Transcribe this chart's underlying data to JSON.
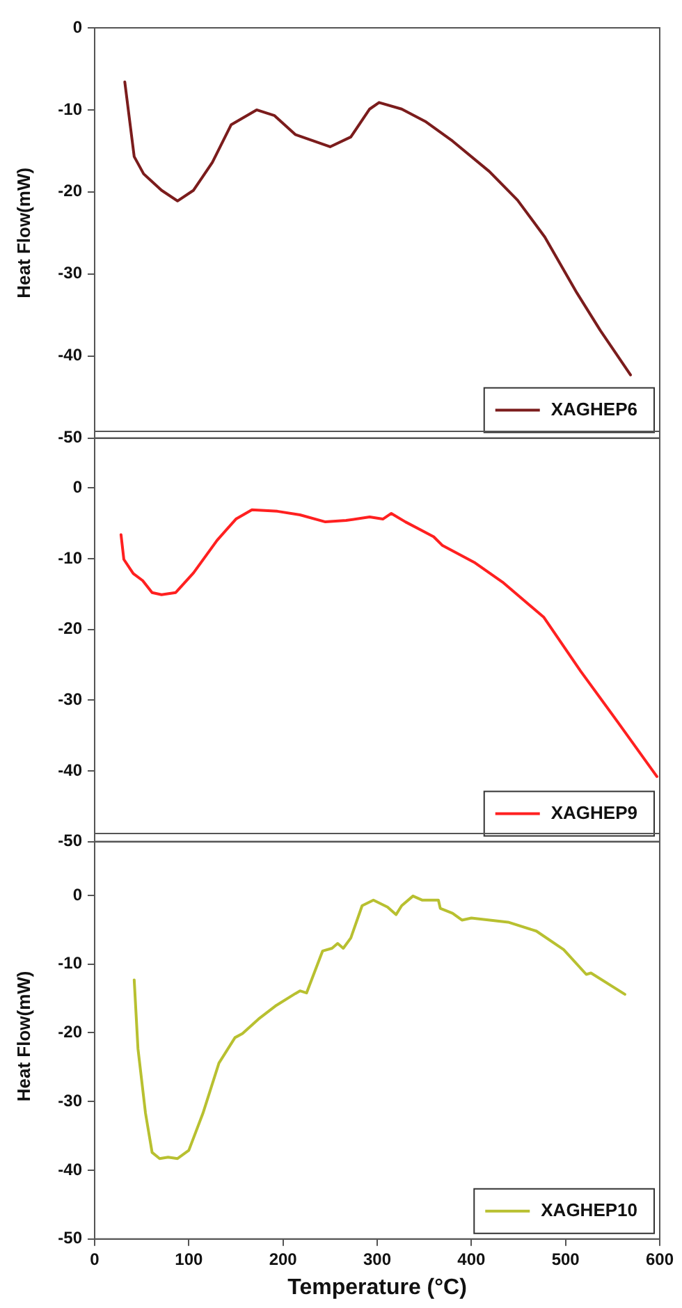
{
  "chart_data": [
    {
      "type": "line",
      "ylabel": "Heat Flow(mW)",
      "xlim": [
        0,
        600
      ],
      "ylim": [
        -50,
        0
      ],
      "yticks": [
        -50,
        -40,
        -30,
        -20,
        -10,
        0
      ],
      "tick_labels": "y",
      "legend": "bottom right",
      "grid": false,
      "marker": "none",
      "line_style": "solid",
      "series": [
        {
          "name": "XAGHEP6",
          "color": "#7b1c1c",
          "x": [
            32,
            42,
            52,
            71,
            88,
            105,
            125,
            145,
            172,
            191,
            213,
            250,
            272,
            292,
            302,
            326,
            351,
            380,
            419,
            449,
            478,
            512,
            537,
            569
          ],
          "values": [
            -6.6,
            -15.7,
            -17.8,
            -19.8,
            -21.1,
            -19.8,
            -16.4,
            -11.8,
            -10,
            -10.7,
            -13,
            -14.5,
            -13.3,
            -9.9,
            -9.1,
            -9.9,
            -11.4,
            -13.8,
            -17.5,
            -21,
            -25.5,
            -32.3,
            -36.9,
            -42.3
          ]
        }
      ]
    },
    {
      "type": "line",
      "xlim": [
        0,
        600
      ],
      "ylim": [
        -50,
        8
      ],
      "yticks": [
        -50,
        -40,
        -30,
        -20,
        -10,
        0
      ],
      "tick_labels": "y",
      "legend": "bottom right",
      "grid": false,
      "marker": "none",
      "line_style": "solid",
      "series": [
        {
          "name": "XAGHEP9",
          "color": "#ff2020",
          "x": [
            28,
            31,
            41,
            51,
            61,
            71,
            86,
            105,
            130,
            150,
            167,
            194,
            218,
            245,
            267,
            292,
            306,
            315,
            330,
            360,
            369,
            404,
            433,
            477,
            516,
            556,
            597
          ],
          "values": [
            -6.6,
            -10.1,
            -12.1,
            -13.1,
            -14.8,
            -15.1,
            -14.8,
            -12,
            -7.4,
            -4.4,
            -3.1,
            -3.3,
            -3.8,
            -4.8,
            -4.6,
            -4.1,
            -4.4,
            -3.6,
            -4.8,
            -6.9,
            -8.1,
            -10.6,
            -13.3,
            -18.3,
            -25.9,
            -33.2,
            -40.8
          ]
        }
      ]
    },
    {
      "type": "line",
      "xlabel": "Temperature (°C)",
      "ylabel": "Heat Flow(mW)",
      "xlim": [
        0,
        600
      ],
      "xticks": [
        0,
        100,
        200,
        300,
        400,
        500,
        600
      ],
      "ylim": [
        -50,
        9
      ],
      "yticks": [
        -50,
        -40,
        -30,
        -20,
        -10,
        0
      ],
      "legend": "bottom right",
      "grid": false,
      "marker": "none",
      "line_style": "solid",
      "series": [
        {
          "name": "XAGHEP10",
          "color": "#b8c030",
          "x": [
            42,
            46,
            54,
            61,
            69,
            78,
            88,
            100,
            115,
            132,
            149,
            157,
            174,
            193,
            213,
            218,
            225,
            242,
            252,
            258,
            264,
            272,
            284,
            296,
            311,
            320,
            326,
            338,
            348,
            365,
            367,
            380,
            390,
            400,
            439,
            469,
            498,
            522,
            527,
            563
          ],
          "values": [
            -12.3,
            -22.3,
            -31.7,
            -37.4,
            -38.3,
            -38.1,
            -38.3,
            -37.1,
            -31.7,
            -24.4,
            -20.7,
            -20.1,
            -18,
            -16,
            -14.3,
            -13.9,
            -14.2,
            -8.1,
            -7.7,
            -7,
            -7.7,
            -6.2,
            -1.5,
            -0.7,
            -1.7,
            -2.8,
            -1.5,
            -0.1,
            -0.7,
            -0.7,
            -1.9,
            -2.6,
            -3.6,
            -3.3,
            -3.9,
            -5.2,
            -7.9,
            -11.5,
            -11.3,
            -14.4
          ]
        }
      ]
    }
  ]
}
